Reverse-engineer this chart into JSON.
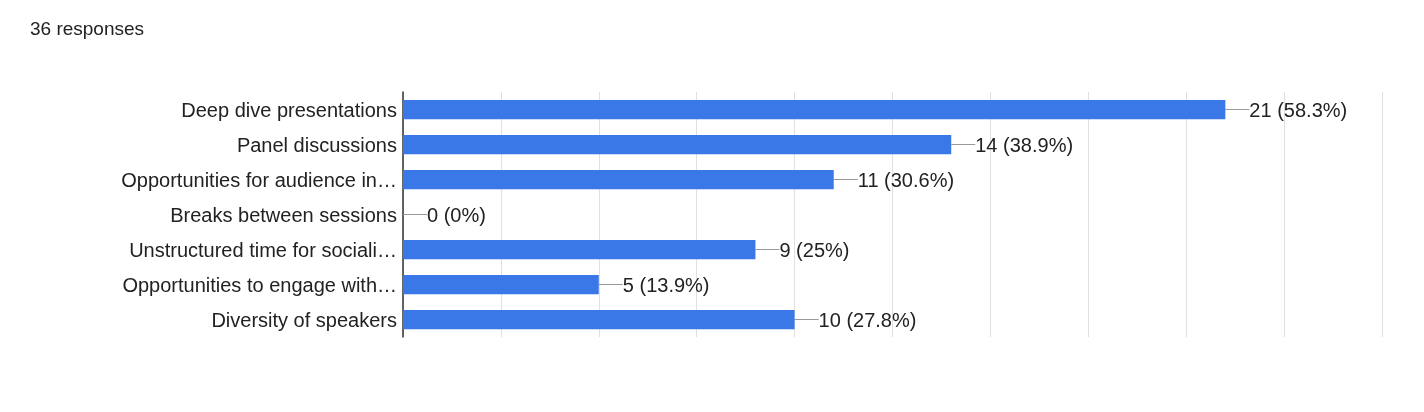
{
  "chart_data": {
    "type": "bar",
    "title": "36 responses",
    "orientation": "horizontal",
    "categories": [
      "Deep dive presentations",
      "Panel discussions",
      "Opportunities for audience in…",
      "Breaks between sessions",
      "Unstructured time for sociali…",
      "Opportunities to engage with…",
      "Diversity of speakers"
    ],
    "values": [
      21,
      14,
      11,
      0,
      9,
      5,
      10
    ],
    "value_labels": [
      "21 (58.3%)",
      "14 (38.9%)",
      "11 (30.6%)",
      "0 (0%)",
      "9 (25%)",
      "5 (13.9%)",
      "10 (27.8%)"
    ],
    "color": "#3b78e7",
    "xlim": [
      0,
      25
    ],
    "xticks": [
      {
        "value": 0,
        "label": null
      },
      {
        "value": 2.5,
        "label": null
      },
      {
        "value": 5,
        "label": null
      },
      {
        "value": 7.5,
        "label": null
      },
      {
        "value": 10,
        "label": null
      },
      {
        "value": 12.5,
        "label": null
      },
      {
        "value": 15,
        "label": null
      },
      {
        "value": 17.5,
        "label": null
      },
      {
        "value": 20,
        "label": null
      },
      {
        "value": 22.5,
        "label": null
      },
      {
        "value": 25,
        "label": null
      }
    ],
    "grid": "x",
    "tick_labels": "y"
  }
}
